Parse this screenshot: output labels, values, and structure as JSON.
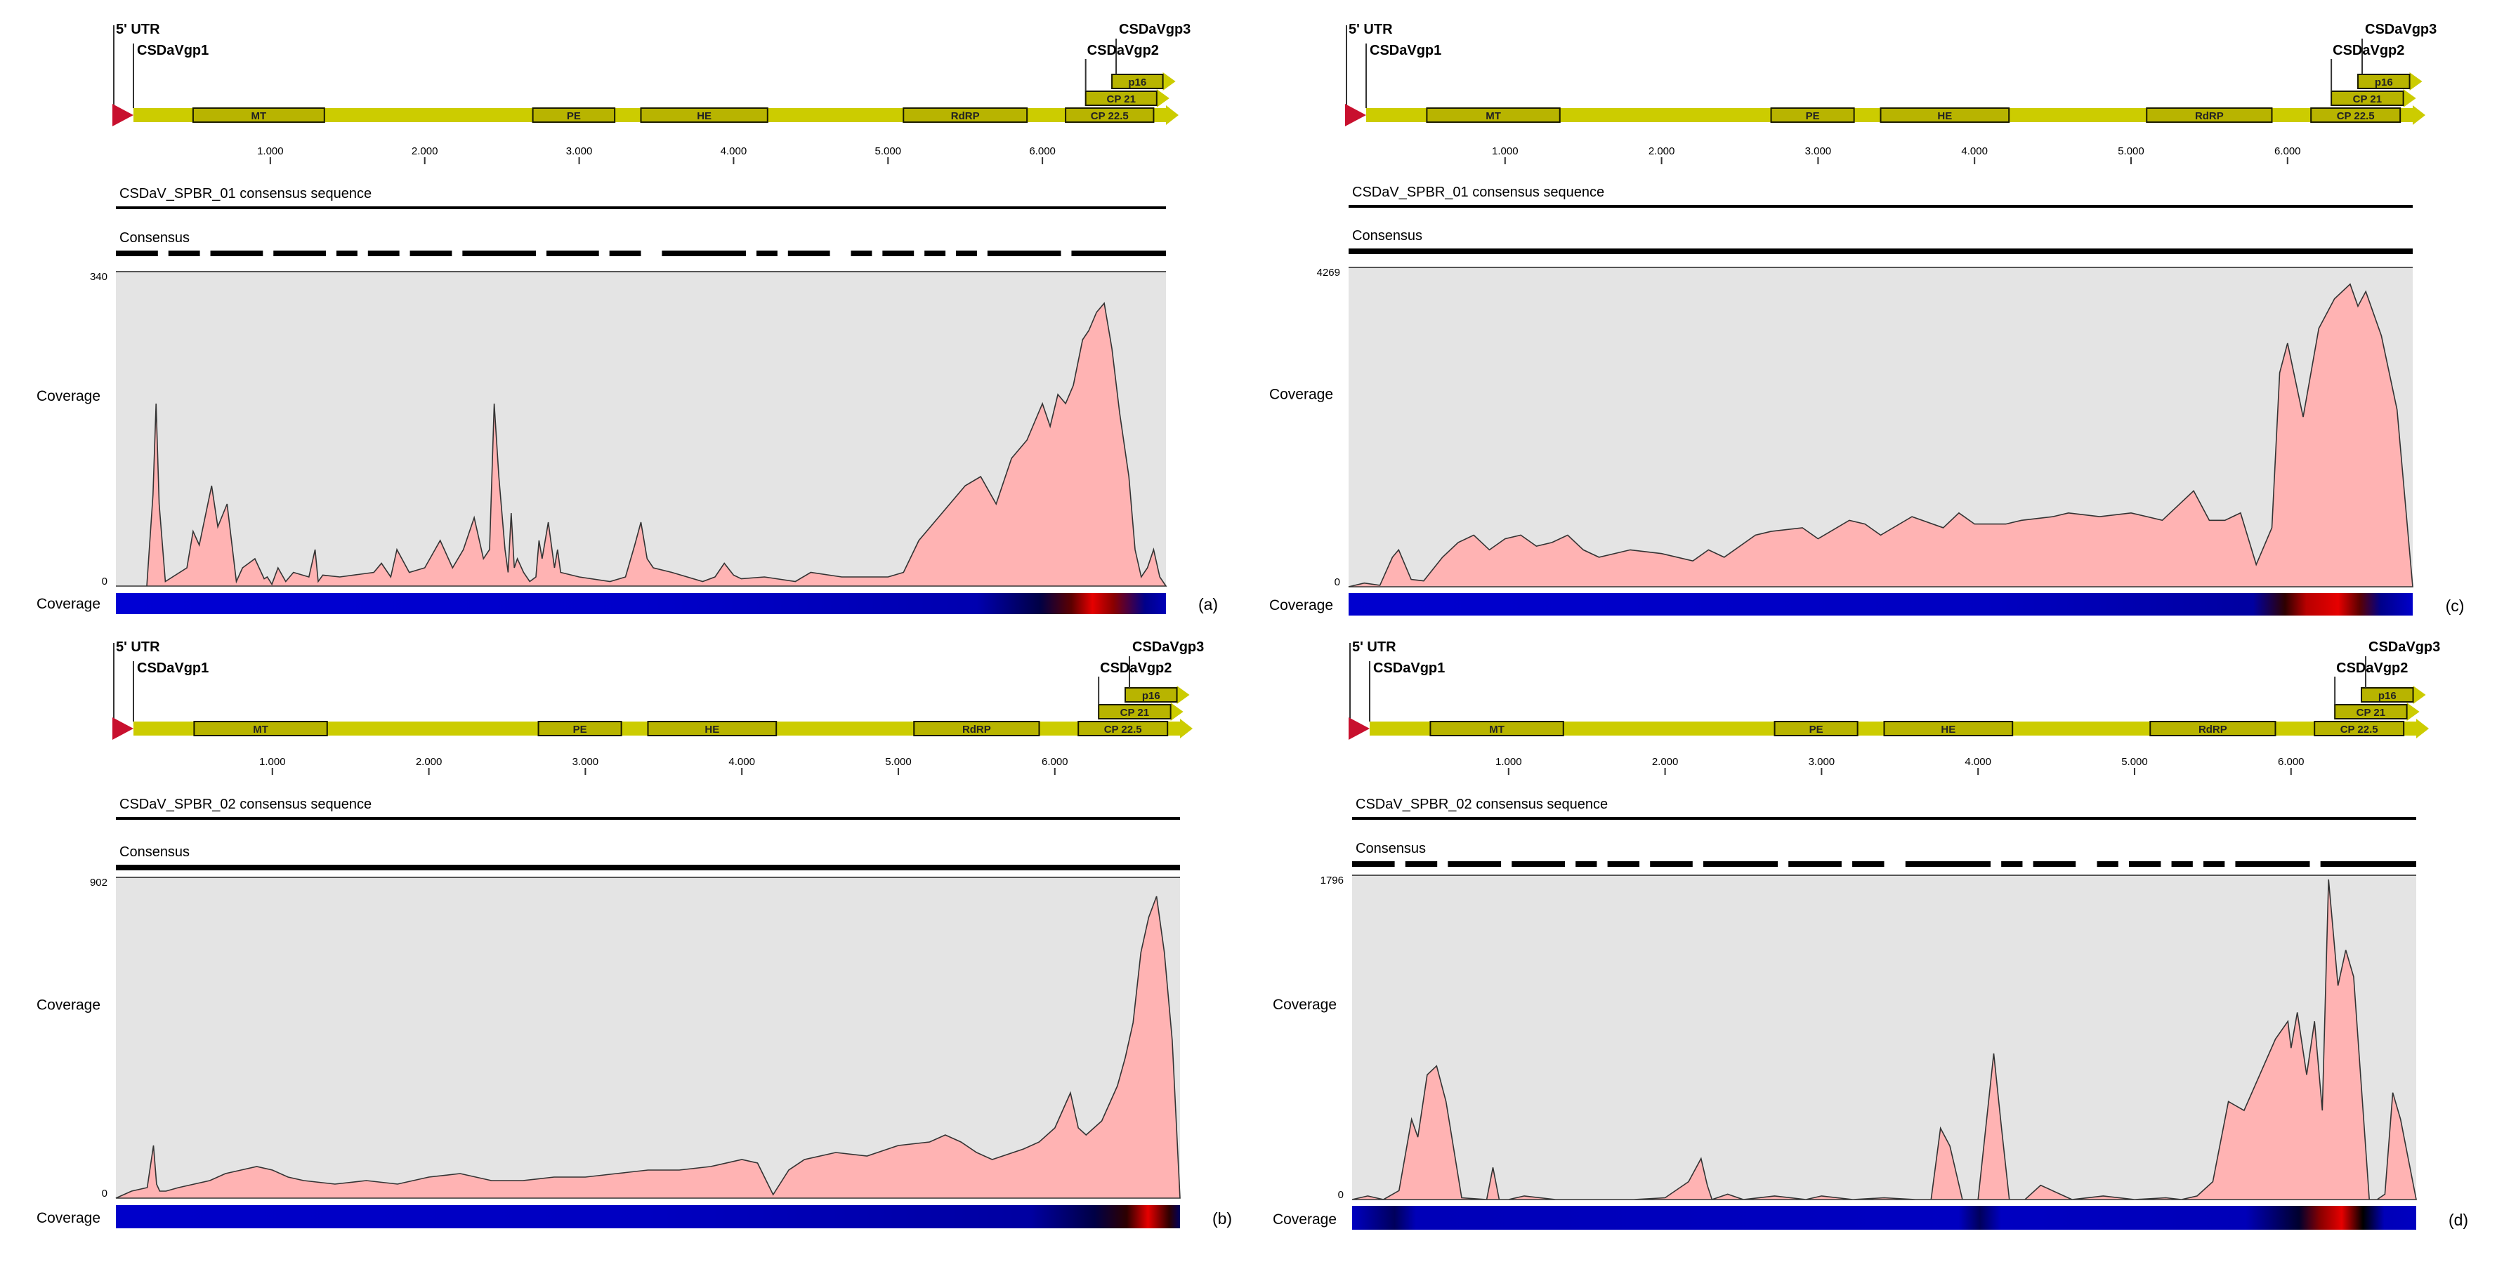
{
  "genome": {
    "utr_label": "5' UTR",
    "gene_labels": [
      "CSDaVgp1",
      "CSDaVgp2",
      "CSDaVgp3"
    ],
    "domains": [
      {
        "name": "MT",
        "start": 500,
        "end": 1350
      },
      {
        "name": "PE",
        "start": 2700,
        "end": 3230
      },
      {
        "name": "HE",
        "start": 3400,
        "end": 4220
      },
      {
        "name": "RdRP",
        "start": 5100,
        "end": 5900
      }
    ],
    "cp_features": [
      {
        "name": "CP 22.5",
        "start": 6150,
        "end": 6720
      },
      {
        "name": "CP 21",
        "start": 6280,
        "end": 6740
      },
      {
        "name": "p16",
        "start": 6450,
        "end": 6780
      }
    ],
    "length": 6800,
    "ticks": [
      1000,
      2000,
      3000,
      4000,
      5000,
      6000
    ],
    "tick_labels": [
      "1.000",
      "2.000",
      "3.000",
      "4.000",
      "5.000",
      "6.000"
    ],
    "colors": {
      "bar": "#cccc00",
      "box": "#b8b400",
      "utr": "#c8102e"
    }
  },
  "common": {
    "consensus_label": "Consensus",
    "coverage_label": "Coverage",
    "coverage_bar_label": "Coverage",
    "y_min_label": "0",
    "fill_color": "#ffb3b3",
    "plot_bg": "#e4e4e4"
  },
  "chart_data": [
    {
      "type": "area",
      "panel": "(a)",
      "title": "CSDaV_SPBR_01 consensus sequence",
      "ylabel": "Coverage",
      "ylim": [
        0,
        340
      ],
      "y_max_label": "340",
      "consensus_gaps": true,
      "x": [
        0,
        200,
        240,
        260,
        280,
        320,
        460,
        500,
        540,
        620,
        660,
        720,
        780,
        820,
        900,
        960,
        980,
        1010,
        1050,
        1100,
        1150,
        1250,
        1290,
        1310,
        1340,
        1450,
        1670,
        1720,
        1780,
        1820,
        1900,
        2000,
        2100,
        2180,
        2250,
        2320,
        2380,
        2420,
        2450,
        2480,
        2520,
        2540,
        2560,
        2580,
        2600,
        2640,
        2680,
        2720,
        2740,
        2760,
        2800,
        2840,
        2860,
        2880,
        3000,
        3200,
        3300,
        3360,
        3400,
        3440,
        3480,
        3600,
        3800,
        3880,
        3940,
        4000,
        4050,
        4200,
        4400,
        4500,
        4700,
        5000,
        5100,
        5200,
        5300,
        5400,
        5500,
        5600,
        5700,
        5800,
        5900,
        6000,
        6050,
        6100,
        6150,
        6200,
        6260,
        6300,
        6350,
        6400,
        6450,
        6500,
        6560,
        6600,
        6640,
        6680,
        6720,
        6760,
        6800
      ],
      "y": [
        0,
        0,
        100,
        200,
        90,
        5,
        20,
        60,
        45,
        110,
        65,
        90,
        5,
        20,
        30,
        8,
        10,
        2,
        20,
        5,
        15,
        10,
        40,
        5,
        12,
        10,
        15,
        25,
        10,
        40,
        15,
        20,
        50,
        20,
        40,
        75,
        30,
        40,
        200,
        120,
        40,
        15,
        80,
        20,
        30,
        15,
        5,
        10,
        50,
        30,
        70,
        20,
        40,
        15,
        10,
        5,
        10,
        45,
        70,
        30,
        20,
        15,
        5,
        10,
        25,
        12,
        8,
        10,
        5,
        15,
        10,
        10,
        15,
        50,
        70,
        90,
        110,
        120,
        90,
        140,
        160,
        200,
        175,
        210,
        200,
        220,
        270,
        280,
        300,
        310,
        260,
        190,
        120,
        40,
        10,
        20,
        40,
        10,
        0
      ],
      "heat": [
        [
          0,
          0.04
        ],
        [
          0.5,
          0.06
        ],
        [
          0.82,
          0.12
        ],
        [
          0.88,
          0.35
        ],
        [
          0.91,
          0.7
        ],
        [
          0.93,
          1
        ],
        [
          0.95,
          0.8
        ],
        [
          0.98,
          0.2
        ],
        [
          1,
          0.1
        ]
      ]
    },
    {
      "type": "area",
      "panel": "(b)",
      "title": "CSDaV_SPBR_02 consensus sequence",
      "ylabel": "Coverage",
      "ylim": [
        0,
        902
      ],
      "y_max_label": "902",
      "consensus_gaps": false,
      "x": [
        0,
        100,
        200,
        240,
        260,
        280,
        320,
        400,
        500,
        600,
        700,
        800,
        900,
        1000,
        1100,
        1200,
        1400,
        1600,
        1800,
        2000,
        2200,
        2400,
        2600,
        2800,
        3000,
        3200,
        3400,
        3600,
        3800,
        4000,
        4100,
        4200,
        4300,
        4400,
        4600,
        4800,
        5000,
        5200,
        5300,
        5400,
        5500,
        5600,
        5800,
        5900,
        6000,
        6050,
        6100,
        6150,
        6200,
        6300,
        6400,
        6450,
        6500,
        6550,
        6600,
        6650,
        6700,
        6750,
        6800
      ],
      "y": [
        0,
        20,
        30,
        150,
        40,
        20,
        20,
        30,
        40,
        50,
        70,
        80,
        90,
        80,
        60,
        50,
        40,
        50,
        40,
        60,
        70,
        50,
        50,
        60,
        60,
        70,
        80,
        80,
        90,
        110,
        100,
        10,
        80,
        110,
        130,
        120,
        150,
        160,
        180,
        160,
        130,
        110,
        140,
        160,
        200,
        250,
        300,
        200,
        180,
        220,
        320,
        400,
        500,
        700,
        800,
        860,
        700,
        450,
        0
      ],
      "heat": [
        [
          0,
          0.06
        ],
        [
          0.5,
          0.08
        ],
        [
          0.86,
          0.15
        ],
        [
          0.92,
          0.35
        ],
        [
          0.95,
          0.6
        ],
        [
          0.97,
          1
        ],
        [
          0.99,
          0.6
        ],
        [
          1,
          0.3
        ]
      ]
    },
    {
      "type": "area",
      "panel": "(c)",
      "title": "CSDaV_SPBR_01 consensus sequence",
      "ylabel": "Coverage",
      "ylim": [
        0,
        4269
      ],
      "y_max_label": "4269",
      "consensus_gaps": false,
      "x": [
        0,
        100,
        200,
        280,
        320,
        400,
        480,
        600,
        700,
        800,
        900,
        1000,
        1100,
        1200,
        1300,
        1400,
        1500,
        1600,
        1800,
        2000,
        2200,
        2300,
        2400,
        2600,
        2700,
        2900,
        3000,
        3200,
        3300,
        3400,
        3600,
        3800,
        3900,
        4000,
        4200,
        4300,
        4500,
        4600,
        4800,
        5000,
        5200,
        5300,
        5400,
        5500,
        5600,
        5700,
        5800,
        5900,
        5950,
        6000,
        6100,
        6200,
        6300,
        6400,
        6450,
        6500,
        6600,
        6700,
        6800
      ],
      "y": [
        0,
        50,
        20,
        400,
        500,
        100,
        80,
        400,
        600,
        700,
        500,
        650,
        700,
        550,
        600,
        700,
        500,
        400,
        500,
        450,
        350,
        500,
        400,
        700,
        750,
        800,
        650,
        900,
        850,
        700,
        950,
        800,
        1000,
        850,
        850,
        900,
        950,
        1000,
        950,
        1000,
        900,
        1100,
        1300,
        900,
        900,
        1000,
        300,
        800,
        2900,
        3300,
        2300,
        3500,
        3900,
        4100,
        3800,
        4000,
        3400,
        2400,
        0
      ],
      "heat": [
        [
          0,
          0.05
        ],
        [
          0.6,
          0.08
        ],
        [
          0.85,
          0.15
        ],
        [
          0.88,
          0.6
        ],
        [
          0.9,
          0.9
        ],
        [
          0.93,
          1
        ],
        [
          0.95,
          0.7
        ],
        [
          0.97,
          0.2
        ],
        [
          1,
          0.06
        ]
      ]
    },
    {
      "type": "area",
      "panel": "(d)",
      "title": "CSDaV_SPBR_02 consensus sequence",
      "ylabel": "Coverage",
      "ylim": [
        0,
        1796
      ],
      "y_max_label": "1796",
      "consensus_gaps": true,
      "x": [
        0,
        100,
        200,
        300,
        380,
        420,
        480,
        540,
        600,
        700,
        860,
        900,
        940,
        1000,
        1100,
        1300,
        1500,
        1800,
        2000,
        2150,
        2230,
        2270,
        2300,
        2400,
        2500,
        2700,
        2900,
        3000,
        3200,
        3400,
        3600,
        3700,
        3760,
        3820,
        3900,
        4000,
        4100,
        4150,
        4200,
        4300,
        4400,
        4600,
        4800,
        5000,
        5200,
        5300,
        5400,
        5500,
        5600,
        5700,
        5800,
        5900,
        5980,
        6000,
        6040,
        6100,
        6150,
        6200,
        6240,
        6300,
        6350,
        6400,
        6500,
        6550,
        6600,
        6650,
        6700,
        6800
      ],
      "y": [
        0,
        20,
        0,
        50,
        450,
        350,
        700,
        750,
        550,
        10,
        0,
        180,
        0,
        0,
        20,
        0,
        0,
        0,
        10,
        100,
        230,
        80,
        0,
        30,
        0,
        20,
        0,
        20,
        0,
        10,
        0,
        0,
        400,
        300,
        0,
        0,
        820,
        400,
        0,
        0,
        80,
        0,
        20,
        0,
        10,
        0,
        20,
        100,
        550,
        500,
        700,
        900,
        1000,
        850,
        1050,
        700,
        1000,
        500,
        1796,
        1200,
        1400,
        1250,
        0,
        0,
        30,
        600,
        450,
        0
      ],
      "heat": [
        [
          0,
          0.08
        ],
        [
          0.04,
          0.3
        ],
        [
          0.06,
          0.1
        ],
        [
          0.57,
          0.08
        ],
        [
          0.59,
          0.3
        ],
        [
          0.61,
          0.08
        ],
        [
          0.84,
          0.1
        ],
        [
          0.89,
          0.4
        ],
        [
          0.91,
          0.8
        ],
        [
          0.93,
          1
        ],
        [
          0.95,
          0.5
        ],
        [
          0.97,
          0.1
        ],
        [
          1,
          0.08
        ]
      ]
    }
  ]
}
